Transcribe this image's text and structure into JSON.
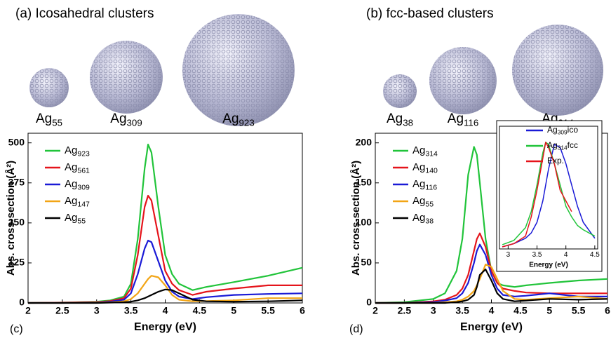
{
  "panels": {
    "a_title": "(a) Icosahedral clusters",
    "b_title": "(b) fcc-based clusters",
    "a_clusters": [
      "Ag55",
      "Ag309",
      "Ag923"
    ],
    "b_clusters": [
      "Ag38",
      "Ag116",
      "Ag314"
    ]
  },
  "chart_data": [
    {
      "type": "line",
      "label": "(c)",
      "xlabel": "Energy (eV)",
      "ylabel": "Abs. cross-section (Å²)",
      "legend": "upper left",
      "x": [
        2,
        2.5,
        3,
        3.2,
        3.4,
        3.5,
        3.6,
        3.7,
        3.75,
        3.8,
        3.9,
        4,
        4.1,
        4.2,
        4.4,
        4.6,
        5,
        5.5,
        6
      ],
      "xlim": [
        2,
        6
      ],
      "xticks": [
        2,
        2.5,
        3,
        3.5,
        4,
        4.5,
        5,
        5.5,
        6
      ],
      "ylim": [
        0,
        530
      ],
      "yticks": [
        0,
        125,
        250,
        375,
        500
      ],
      "series": [
        {
          "name": "Ag923",
          "color": "#21c43a",
          "values": [
            0,
            1,
            4,
            8,
            20,
            60,
            200,
            420,
            495,
            470,
            300,
            150,
            90,
            60,
            40,
            50,
            65,
            85,
            110
          ]
        },
        {
          "name": "Ag561",
          "color": "#e5141b",
          "values": [
            0,
            1,
            3,
            6,
            15,
            45,
            150,
            300,
            335,
            320,
            210,
            100,
            60,
            40,
            25,
            35,
            45,
            55,
            55
          ]
        },
        {
          "name": "Ag309",
          "color": "#1a1ad6",
          "values": [
            0,
            0,
            2,
            4,
            10,
            30,
            90,
            170,
            195,
            190,
            130,
            70,
            35,
            20,
            12,
            18,
            25,
            28,
            30
          ]
        },
        {
          "name": "Ag147",
          "color": "#f2a516",
          "values": [
            0,
            0,
            1,
            2,
            5,
            12,
            30,
            60,
            75,
            85,
            80,
            55,
            25,
            10,
            5,
            6,
            8,
            15,
            15
          ]
        },
        {
          "name": "Ag55",
          "color": "#000000",
          "values": [
            0,
            0,
            0,
            1,
            2,
            4,
            8,
            15,
            20,
            25,
            35,
            42,
            40,
            30,
            10,
            5,
            4,
            5,
            8
          ]
        }
      ]
    },
    {
      "type": "line",
      "label": "(d)",
      "xlabel": "Energy (eV)",
      "ylabel": "Abs. cross-section (Å²)",
      "legend": "upper left",
      "x": [
        2,
        2.5,
        3,
        3.2,
        3.4,
        3.5,
        3.6,
        3.7,
        3.75,
        3.8,
        3.9,
        4,
        4.1,
        4.2,
        4.4,
        4.6,
        5,
        5.5,
        6
      ],
      "xlim": [
        2,
        6
      ],
      "xticks": [
        2,
        2.5,
        3,
        3.5,
        4,
        4.5,
        5,
        5.5,
        6
      ],
      "ylim": [
        0,
        212
      ],
      "yticks": [
        0,
        50,
        100,
        150,
        200
      ],
      "series": [
        {
          "name": "Ag314",
          "color": "#21c43a",
          "values": [
            0,
            1,
            5,
            12,
            40,
            80,
            160,
            195,
            185,
            150,
            80,
            40,
            25,
            22,
            20,
            22,
            25,
            28,
            30
          ]
        },
        {
          "name": "Ag140",
          "color": "#e5141b",
          "values": [
            0,
            0,
            2,
            4,
            10,
            18,
            35,
            65,
            80,
            87,
            70,
            40,
            25,
            18,
            15,
            13,
            12,
            12,
            12
          ]
        },
        {
          "name": "Ag116",
          "color": "#1a1ad6",
          "values": [
            0,
            0,
            1,
            3,
            6,
            12,
            25,
            50,
            65,
            73,
            60,
            35,
            18,
            10,
            8,
            9,
            12,
            8,
            8
          ]
        },
        {
          "name": "Ag55",
          "color": "#f2a516",
          "values": [
            0,
            0,
            0,
            1,
            2,
            4,
            8,
            15,
            22,
            30,
            48,
            45,
            30,
            15,
            5,
            4,
            6,
            8,
            5
          ]
        },
        {
          "name": "Ag38",
          "color": "#000000",
          "values": [
            0,
            0,
            0,
            0,
            1,
            2,
            4,
            10,
            20,
            35,
            42,
            28,
            12,
            5,
            2,
            3,
            5,
            4,
            5
          ]
        }
      ]
    },
    {
      "type": "line",
      "xlabel": "Energy (eV)",
      "legend": "upper right",
      "x": [
        2.9,
        3.1,
        3.3,
        3.4,
        3.5,
        3.6,
        3.65,
        3.7,
        3.8,
        3.9,
        4.0,
        4.1,
        4.2,
        4.3,
        4.5
      ],
      "xlim": [
        2.85,
        4.55
      ],
      "xticks": [
        3,
        3.5,
        4,
        4.5
      ],
      "ylim": [
        0,
        1.15
      ],
      "series": [
        {
          "name": "Ag309ico",
          "color": "#1a1ad6",
          "values": [
            0.02,
            0.05,
            0.1,
            0.15,
            0.25,
            0.45,
            0.6,
            0.75,
            0.98,
            0.95,
            0.8,
            0.6,
            0.4,
            0.25,
            0.1
          ]
        },
        {
          "name": "Ag314fcc",
          "color": "#21c43a",
          "values": [
            0.04,
            0.08,
            0.2,
            0.35,
            0.6,
            0.9,
            1.0,
            0.98,
            0.8,
            0.6,
            0.4,
            0.3,
            0.22,
            0.18,
            0.12
          ]
        },
        {
          "name": "Exp.",
          "color": "#e5141b",
          "values": [
            0.02,
            0.05,
            0.12,
            0.3,
            0.55,
            0.85,
            1.0,
            0.95,
            0.8,
            0.55,
            0.45,
            0.35,
            null,
            null,
            null
          ]
        }
      ]
    }
  ]
}
